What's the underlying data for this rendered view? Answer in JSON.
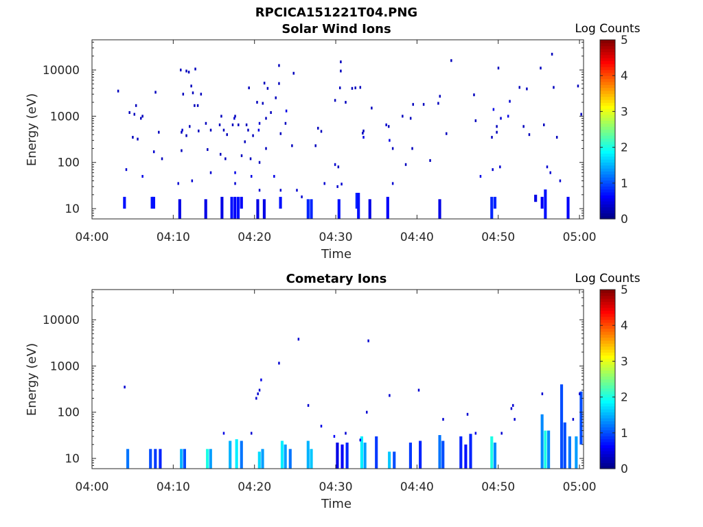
{
  "figure": {
    "title": "RPCICA151221T04.PNG"
  },
  "colors": {
    "background": "#ffffff",
    "axis": "#262626"
  },
  "chart_data": [
    {
      "type": "heatmap",
      "title": "Solar Wind Ions",
      "xlabel": "Time",
      "ylabel": "Energy (eV)",
      "x_tick_labels": [
        "04:00",
        "04:10",
        "04:20",
        "04:30",
        "04:40",
        "04:50",
        "05:00"
      ],
      "xlim_minutes": [
        0,
        60.5
      ],
      "y_scale": "log",
      "ylim": [
        6,
        45000
      ],
      "y_tick_labels": [
        "10",
        "100",
        "1000",
        "10000"
      ],
      "colorbar": {
        "label": "Log Counts",
        "ticks": [
          "0",
          "1",
          "2",
          "3",
          "4",
          "5"
        ],
        "range": [
          0,
          5
        ],
        "colormap": "jet"
      },
      "points": [
        [
          3.2,
          3500,
          0.3
        ],
        [
          4.2,
          70,
          0.4
        ],
        [
          4.6,
          1200,
          0.3
        ],
        [
          5.0,
          350,
          0.3
        ],
        [
          5.2,
          1100,
          0.3
        ],
        [
          5.4,
          1700,
          0.3
        ],
        [
          5.6,
          320,
          0.3
        ],
        [
          6.0,
          900,
          0.3
        ],
        [
          6.2,
          1000,
          0.3
        ],
        [
          6.2,
          50,
          0.5
        ],
        [
          7.6,
          170,
          0.4
        ],
        [
          7.8,
          3300,
          0.3
        ],
        [
          8.2,
          450,
          0.3
        ],
        [
          8.6,
          120,
          0.3
        ],
        [
          10.6,
          35,
          0.4
        ],
        [
          10.9,
          10000,
          0.3
        ],
        [
          11.0,
          180,
          0.3
        ],
        [
          11.0,
          450,
          0.3
        ],
        [
          11.1,
          500,
          0.4
        ],
        [
          11.2,
          3000,
          0.3
        ],
        [
          11.6,
          9500,
          0.3
        ],
        [
          11.6,
          380,
          0.3
        ],
        [
          11.9,
          9000,
          0.3
        ],
        [
          12.0,
          600,
          0.3
        ],
        [
          12.2,
          4500,
          0.3
        ],
        [
          12.3,
          40,
          0.4
        ],
        [
          12.4,
          3200,
          0.3
        ],
        [
          12.6,
          1700,
          0.3
        ],
        [
          12.7,
          10500,
          0.3
        ],
        [
          13.0,
          1700,
          0.3
        ],
        [
          13.1,
          480,
          0.3
        ],
        [
          13.4,
          3000,
          0.3
        ],
        [
          14.0,
          700,
          0.3
        ],
        [
          14.2,
          190,
          0.3
        ],
        [
          14.6,
          500,
          0.3
        ],
        [
          14.6,
          60,
          0.4
        ],
        [
          15.7,
          650,
          0.3
        ],
        [
          15.8,
          150,
          0.3
        ],
        [
          15.9,
          1000,
          0.3
        ],
        [
          16.2,
          500,
          0.3
        ],
        [
          16.4,
          120,
          0.3
        ],
        [
          16.6,
          400,
          0.3
        ],
        [
          17.3,
          650,
          0.3
        ],
        [
          17.5,
          900,
          0.4
        ],
        [
          17.6,
          1000,
          0.3
        ],
        [
          17.6,
          60,
          0.5
        ],
        [
          17.6,
          35,
          0.4
        ],
        [
          18.0,
          650,
          0.3
        ],
        [
          18.4,
          140,
          0.3
        ],
        [
          18.8,
          280,
          0.3
        ],
        [
          19.0,
          650,
          0.3
        ],
        [
          19.2,
          500,
          0.3
        ],
        [
          19.3,
          4100,
          0.3
        ],
        [
          19.5,
          120,
          0.3
        ],
        [
          19.6,
          50,
          0.5
        ],
        [
          19.8,
          380,
          0.3
        ],
        [
          20.3,
          2000,
          0.3
        ],
        [
          20.5,
          500,
          0.5
        ],
        [
          20.6,
          700,
          0.4
        ],
        [
          20.6,
          25,
          0.4
        ],
        [
          20.6,
          100,
          0.3
        ],
        [
          21.0,
          1900,
          0.3
        ],
        [
          21.2,
          5200,
          0.3
        ],
        [
          21.4,
          200,
          0.3
        ],
        [
          21.4,
          900,
          0.3
        ],
        [
          21.6,
          4000,
          0.3
        ],
        [
          22.0,
          1200,
          0.3
        ],
        [
          22.4,
          50,
          0.5
        ],
        [
          22.6,
          2500,
          0.3
        ],
        [
          23.0,
          5100,
          0.3
        ],
        [
          23.0,
          12500,
          0.3
        ],
        [
          23.2,
          420,
          0.3
        ],
        [
          23.2,
          25,
          0.4
        ],
        [
          23.8,
          700,
          0.3
        ],
        [
          23.9,
          1300,
          0.5
        ],
        [
          24.6,
          230,
          0.3
        ],
        [
          24.8,
          8500,
          0.3
        ],
        [
          25.2,
          25,
          0.4
        ],
        [
          25.8,
          18,
          0.4
        ],
        [
          27.5,
          230,
          0.3
        ],
        [
          27.8,
          550,
          0.3
        ],
        [
          28.2,
          470,
          0.3
        ],
        [
          28.6,
          35,
          0.4
        ],
        [
          29.9,
          2200,
          0.3
        ],
        [
          29.9,
          90,
          0.4
        ],
        [
          30.2,
          30,
          0.4
        ],
        [
          30.3,
          80,
          0.3
        ],
        [
          30.5,
          4100,
          0.3
        ],
        [
          30.6,
          9500,
          0.3
        ],
        [
          30.6,
          15000,
          0.3
        ],
        [
          30.7,
          34,
          0.4
        ],
        [
          31.2,
          2000,
          0.3
        ],
        [
          32.0,
          4000,
          0.3
        ],
        [
          32.4,
          4100,
          0.3
        ],
        [
          33.0,
          4200,
          0.3
        ],
        [
          33.3,
          430,
          0.3
        ],
        [
          33.4,
          350,
          0.5
        ],
        [
          33.4,
          480,
          0.3
        ],
        [
          34.4,
          1500,
          0.3
        ],
        [
          36.2,
          650,
          0.4
        ],
        [
          36.5,
          600,
          0.3
        ],
        [
          36.6,
          300,
          0.5
        ],
        [
          37.0,
          200,
          0.3
        ],
        [
          37.0,
          35,
          0.4
        ],
        [
          38.2,
          1000,
          0.3
        ],
        [
          38.6,
          90,
          0.3
        ],
        [
          39.2,
          900,
          0.3
        ],
        [
          39.4,
          200,
          0.3
        ],
        [
          39.5,
          1800,
          0.3
        ],
        [
          40.8,
          1800,
          0.3
        ],
        [
          41.6,
          110,
          0.3
        ],
        [
          42.6,
          1900,
          0.3
        ],
        [
          42.8,
          2700,
          0.3
        ],
        [
          43.6,
          420,
          0.3
        ],
        [
          44.2,
          16000,
          0.3
        ],
        [
          47.0,
          2900,
          0.3
        ],
        [
          47.2,
          800,
          0.3
        ],
        [
          47.8,
          50,
          0.5
        ],
        [
          49.2,
          350,
          0.3
        ],
        [
          49.3,
          70,
          0.4
        ],
        [
          49.4,
          1400,
          0.5
        ],
        [
          49.8,
          450,
          0.3
        ],
        [
          49.8,
          600,
          0.3
        ],
        [
          50.0,
          11000,
          0.3
        ],
        [
          50.2,
          80,
          0.4
        ],
        [
          50.3,
          900,
          0.4
        ],
        [
          51.2,
          1000,
          0.5
        ],
        [
          51.4,
          2100,
          0.4
        ],
        [
          52.6,
          4200,
          0.3
        ],
        [
          53.1,
          600,
          0.3
        ],
        [
          53.5,
          3900,
          0.3
        ],
        [
          53.8,
          400,
          0.3
        ],
        [
          55.2,
          11000,
          0.3
        ],
        [
          55.6,
          650,
          0.3
        ],
        [
          56.0,
          80,
          0.4
        ],
        [
          56.4,
          60,
          0.4
        ],
        [
          56.6,
          22000,
          0.3
        ],
        [
          56.8,
          4200,
          0.3
        ],
        [
          57.2,
          350,
          0.3
        ],
        [
          57.6,
          40,
          0.4
        ],
        [
          59.8,
          4500,
          0.3
        ],
        [
          60.2,
          1100,
          0.3
        ]
      ],
      "columns": [
        [
          4.0,
          10,
          18,
          0.7
        ],
        [
          7.4,
          10,
          18,
          0.7
        ],
        [
          7.6,
          10,
          18,
          0.7
        ],
        [
          10.8,
          6,
          16,
          0.5
        ],
        [
          14.0,
          6,
          16,
          0.5
        ],
        [
          16.0,
          6,
          18,
          0.5
        ],
        [
          17.2,
          6,
          18,
          0.7
        ],
        [
          17.6,
          6,
          18,
          0.6
        ],
        [
          18.0,
          6,
          18,
          0.7
        ],
        [
          18.4,
          10,
          18,
          0.6
        ],
        [
          20.4,
          6,
          16,
          0.5
        ],
        [
          21.2,
          6,
          16,
          0.5
        ],
        [
          23.2,
          10,
          18,
          0.7
        ],
        [
          26.6,
          6,
          16,
          0.8
        ],
        [
          27.0,
          6,
          16,
          0.8
        ],
        [
          30.4,
          6,
          16,
          0.7
        ],
        [
          32.6,
          10,
          22,
          0.8
        ],
        [
          32.8,
          6,
          22,
          0.7
        ],
        [
          34.2,
          6,
          16,
          0.5
        ],
        [
          36.4,
          6,
          18,
          0.6
        ],
        [
          42.8,
          6,
          16,
          0.5
        ],
        [
          49.2,
          6,
          18,
          0.8
        ],
        [
          49.6,
          10,
          18,
          0.8
        ],
        [
          54.6,
          14,
          20,
          0.5
        ],
        [
          55.4,
          10,
          18,
          0.6
        ],
        [
          55.8,
          6,
          26,
          0.7
        ],
        [
          58.6,
          6,
          18,
          0.6
        ]
      ]
    },
    {
      "type": "heatmap",
      "title": "Cometary Ions",
      "xlabel": "Time",
      "ylabel": "Energy (eV)",
      "x_tick_labels": [
        "04:00",
        "04:10",
        "04:20",
        "04:30",
        "04:40",
        "04:50",
        "05:00"
      ],
      "xlim_minutes": [
        0,
        60.5
      ],
      "y_scale": "log",
      "ylim": [
        6,
        45000
      ],
      "y_tick_labels": [
        "10",
        "100",
        "1000",
        "10000"
      ],
      "colorbar": {
        "label": "Log Counts",
        "ticks": [
          "0",
          "1",
          "2",
          "3",
          "4",
          "5"
        ],
        "range": [
          0,
          5
        ],
        "colormap": "jet"
      },
      "points": [
        [
          4.0,
          350,
          0.4
        ],
        [
          16.2,
          35,
          0.5
        ],
        [
          19.6,
          35,
          0.4
        ],
        [
          20.2,
          200,
          0.4
        ],
        [
          20.4,
          250,
          0.4
        ],
        [
          20.6,
          300,
          0.4
        ],
        [
          20.8,
          500,
          0.5
        ],
        [
          23.0,
          1150,
          0.4
        ],
        [
          25.4,
          3800,
          0.4
        ],
        [
          26.6,
          140,
          0.4
        ],
        [
          28.2,
          50,
          0.5
        ],
        [
          29.8,
          30,
          0.6
        ],
        [
          31.2,
          35,
          0.4
        ],
        [
          33.0,
          25,
          0.5
        ],
        [
          33.8,
          100,
          0.4
        ],
        [
          34.0,
          3500,
          0.4
        ],
        [
          36.6,
          230,
          0.4
        ],
        [
          40.2,
          300,
          0.4
        ],
        [
          43.2,
          70,
          0.4
        ],
        [
          46.2,
          90,
          0.4
        ],
        [
          47.2,
          35,
          0.5
        ],
        [
          50.4,
          35,
          0.4
        ],
        [
          51.6,
          120,
          0.4
        ],
        [
          51.8,
          140,
          0.4
        ],
        [
          52.0,
          70,
          0.4
        ],
        [
          55.4,
          250,
          0.4
        ],
        [
          59.2,
          70,
          0.4
        ],
        [
          60.0,
          250,
          0.4
        ]
      ],
      "columns": [
        [
          4.4,
          6,
          16,
          1.2
        ],
        [
          7.2,
          6,
          16,
          1.0
        ],
        [
          7.8,
          6,
          16,
          0.9
        ],
        [
          8.4,
          6,
          16,
          0.8
        ],
        [
          11.0,
          6,
          16,
          1.5
        ],
        [
          11.4,
          6,
          16,
          1.0
        ],
        [
          14.2,
          6,
          16,
          2.0
        ],
        [
          14.6,
          6,
          16,
          1.4
        ],
        [
          17.0,
          6,
          24,
          1.5
        ],
        [
          17.8,
          6,
          26,
          1.8
        ],
        [
          18.4,
          6,
          24,
          1.2
        ],
        [
          20.6,
          6,
          14,
          1.7
        ],
        [
          21.0,
          6,
          16,
          1.4
        ],
        [
          23.4,
          6,
          24,
          1.8
        ],
        [
          23.8,
          6,
          20,
          1.4
        ],
        [
          24.4,
          6,
          16,
          1.2
        ],
        [
          26.6,
          6,
          24,
          1.5
        ],
        [
          27.0,
          6,
          16,
          1.6
        ],
        [
          30.2,
          6,
          22,
          0.5
        ],
        [
          30.8,
          6,
          20,
          0.6
        ],
        [
          31.4,
          6,
          22,
          0.8
        ],
        [
          33.2,
          6,
          30,
          1.8
        ],
        [
          33.6,
          6,
          22,
          1.4
        ],
        [
          35.0,
          6,
          30,
          0.9
        ],
        [
          36.6,
          6,
          14,
          1.6
        ],
        [
          37.2,
          6,
          14,
          1.0
        ],
        [
          39.2,
          6,
          22,
          0.9
        ],
        [
          40.4,
          6,
          24,
          0.8
        ],
        [
          42.8,
          6,
          32,
          1.2
        ],
        [
          43.2,
          6,
          24,
          1.0
        ],
        [
          45.4,
          6,
          30,
          0.8
        ],
        [
          46.0,
          6,
          20,
          0.7
        ],
        [
          46.6,
          6,
          34,
          0.8
        ],
        [
          49.2,
          6,
          30,
          2.0
        ],
        [
          49.6,
          6,
          22,
          1.3
        ],
        [
          55.4,
          6,
          90,
          1.3
        ],
        [
          55.8,
          6,
          40,
          2.0
        ],
        [
          56.2,
          6,
          40,
          1.3
        ],
        [
          57.8,
          6,
          400,
          1.0
        ],
        [
          58.2,
          6,
          60,
          1.0
        ],
        [
          58.8,
          6,
          30,
          1.2
        ],
        [
          59.6,
          6,
          30,
          1.4
        ],
        [
          60.2,
          20,
          280,
          1.0
        ]
      ]
    }
  ]
}
